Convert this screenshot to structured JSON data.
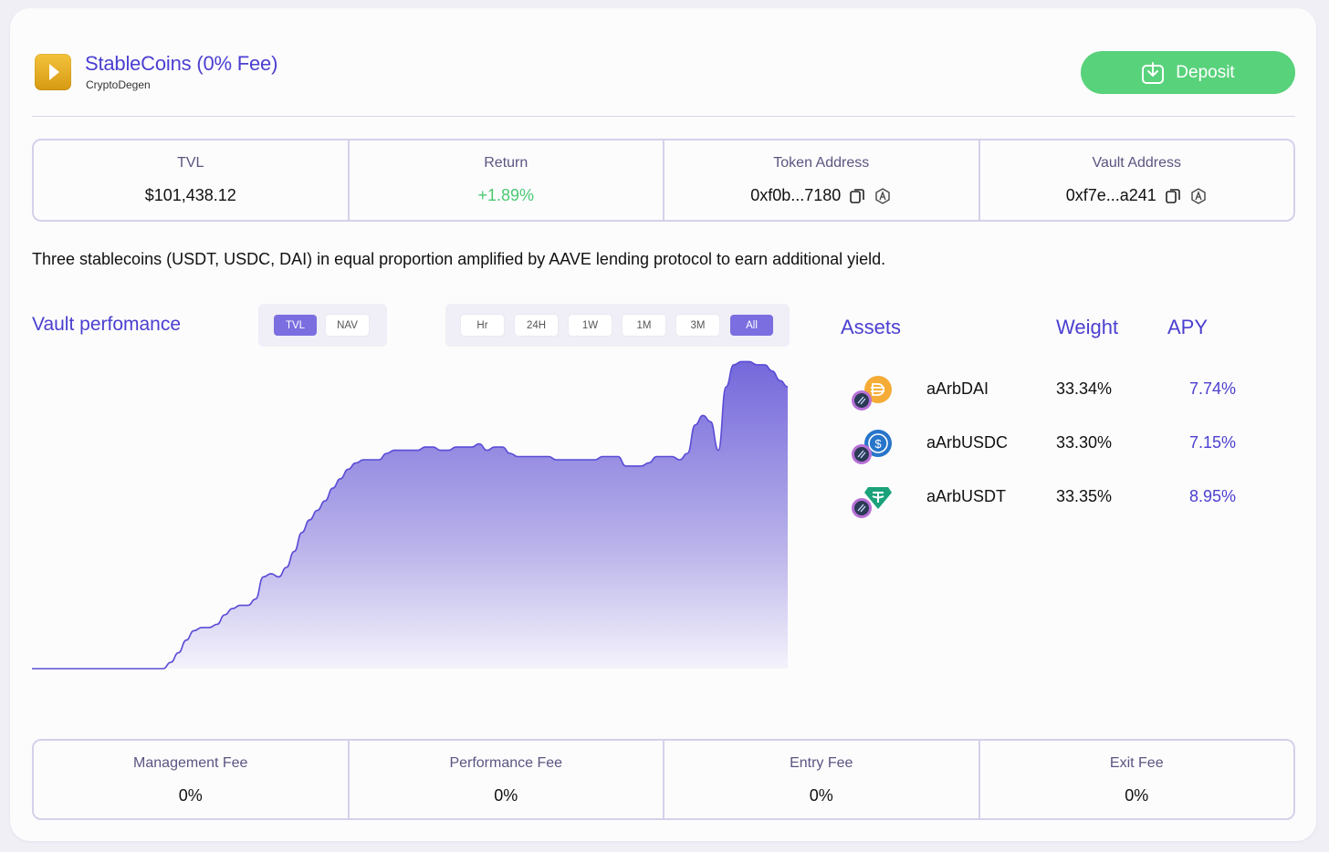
{
  "header": {
    "title": "StableCoins (0% Fee)",
    "creator": "CryptoDegen",
    "deposit_label": "Deposit"
  },
  "stats": [
    {
      "label": "TVL",
      "value": "$101,438.12"
    },
    {
      "label": "Return",
      "value": "+1.89%"
    },
    {
      "label": "Token Address",
      "value": "0xf0b...7180"
    },
    {
      "label": "Vault Address",
      "value": "0xf7e...a241"
    }
  ],
  "description": "Three stablecoins (USDT, USDC, DAI) in equal proportion amplified by AAVE lending protocol to earn additional yield.",
  "performance": {
    "title": "Vault perfomance",
    "metric_tabs": [
      "TVL",
      "NAV"
    ],
    "selected_metric": "TVL",
    "range_tabs": [
      "Hr",
      "24H",
      "1W",
      "1M",
      "3M",
      "All"
    ],
    "selected_range": "All"
  },
  "chart_data": {
    "type": "area",
    "title": "",
    "xlabel": "",
    "ylabel": "",
    "ylim": [
      0,
      100
    ],
    "grid": false,
    "series": [
      {
        "values": [
          0,
          0,
          0,
          0,
          0,
          0,
          0,
          0,
          0,
          0,
          0,
          0,
          0,
          0,
          0,
          0,
          0,
          0,
          2,
          5,
          9,
          12,
          13,
          13,
          14,
          17,
          19,
          20,
          20,
          22,
          29,
          30,
          29,
          32,
          37,
          43,
          47,
          50,
          53,
          57,
          60,
          63,
          65,
          66,
          66,
          66,
          68,
          69,
          69,
          69,
          69,
          70,
          70,
          69,
          69,
          70,
          70,
          70,
          71,
          69,
          70,
          70,
          68,
          67,
          67,
          67,
          67,
          67,
          66,
          66,
          66,
          66,
          66,
          66,
          67,
          67,
          67,
          64,
          64,
          64,
          65,
          67,
          67,
          67,
          66,
          68,
          77,
          80,
          78,
          69,
          89,
          96,
          97,
          97,
          96,
          96,
          94,
          91,
          89
        ],
        "color": "#6f62dc"
      }
    ]
  },
  "assets": {
    "headers": {
      "asset": "Assets",
      "weight": "Weight",
      "apy": "APY"
    },
    "rows": [
      {
        "name": "aArbDAI",
        "weight": "33.34%",
        "apy": "7.74%",
        "icon": "dai-icon",
        "color": "#f5ac37"
      },
      {
        "name": "aArbUSDC",
        "weight": "33.30%",
        "apy": "7.15%",
        "icon": "usdc-icon",
        "color": "#2775ca"
      },
      {
        "name": "aArbUSDT",
        "weight": "33.35%",
        "apy": "8.95%",
        "icon": "usdt-icon",
        "color": "#1ba27a"
      }
    ]
  },
  "fees": [
    {
      "label": "Management Fee",
      "value": "0%"
    },
    {
      "label": "Performance Fee",
      "value": "0%"
    },
    {
      "label": "Entry Fee",
      "value": "0%"
    },
    {
      "label": "Exit Fee",
      "value": "0%"
    }
  ],
  "colors": {
    "accent": "#4b3fd0",
    "positive": "#4cc873",
    "deposit": "#58d27b",
    "border": "#d4d1ea"
  }
}
